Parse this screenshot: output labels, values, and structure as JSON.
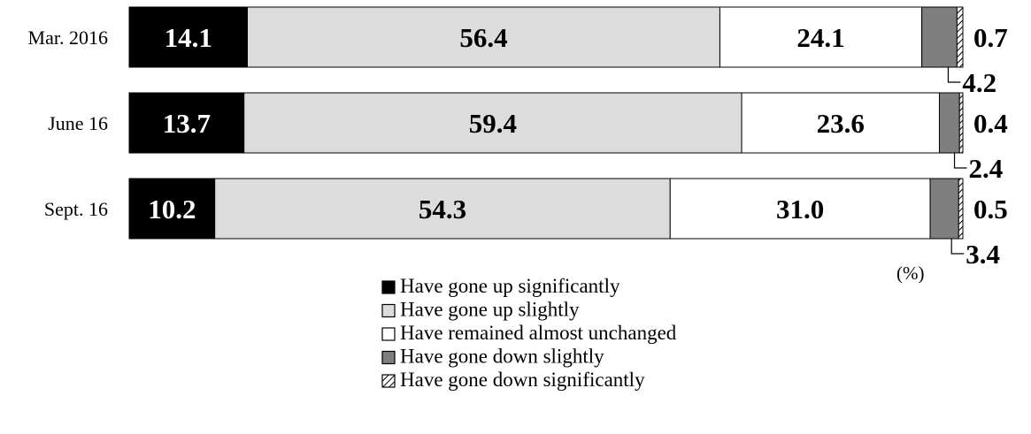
{
  "chart_data": {
    "type": "bar",
    "orientation": "horizontal",
    "stacked": true,
    "categories": [
      "Mar. 2016",
      "June 16",
      "Sept. 16"
    ],
    "series": [
      {
        "name": "Have gone up significantly",
        "values": [
          14.1,
          13.7,
          10.2
        ],
        "color": "#000000",
        "label_color": "#ffffff"
      },
      {
        "name": "Have gone up slightly",
        "values": [
          56.4,
          59.4,
          54.3
        ],
        "color": "#dcdcdc",
        "label_color": "#000000"
      },
      {
        "name": "Have remained almost unchanged",
        "values": [
          24.1,
          23.6,
          31.0
        ],
        "color": "#ffffff",
        "label_color": "#000000"
      },
      {
        "name": "Have gone down slightly",
        "values": [
          4.2,
          2.4,
          3.4
        ],
        "color": "#7f7f7f",
        "label_color": "#000000"
      },
      {
        "name": "Have gone down significantly",
        "values": [
          0.7,
          0.4,
          0.5
        ],
        "color": "hatch",
        "label_color": "#000000"
      }
    ],
    "side_labels": {
      "down_significantly": [
        "0.7",
        "0.4",
        "0.5"
      ],
      "down_slightly": [
        "4.2",
        "2.4",
        "3.4"
      ]
    },
    "unit": "(%)",
    "xlim": [
      0,
      100
    ],
    "grid": false,
    "legend_position": "bottom"
  }
}
